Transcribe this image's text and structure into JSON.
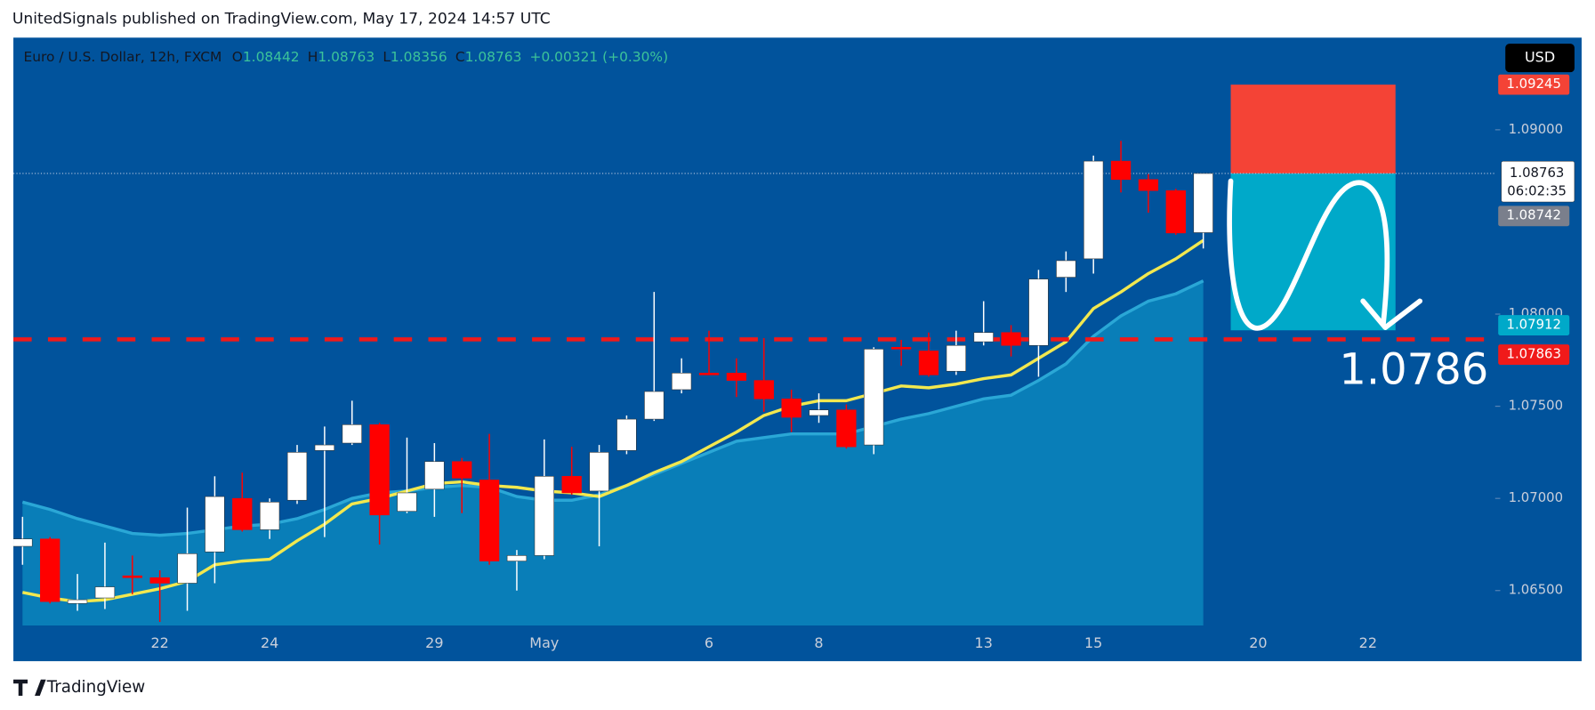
{
  "header": {
    "byline": "UnitedSignals published on TradingView.com, May 17, 2024 14:57 UTC"
  },
  "chart_data": {
    "type": "candlestick",
    "title": "Euro / U.S. Dollar, 12h, FXCM",
    "ohlc_letters": [
      "O",
      "H",
      "L",
      "C"
    ],
    "change": "+0.00321 (+0.30%)",
    "currency": "USD",
    "categories": [
      null,
      null,
      null,
      null,
      null,
      "22",
      null,
      null,
      null,
      "24",
      null,
      null,
      null,
      null,
      null,
      "29",
      null,
      null,
      null,
      "May",
      null,
      null,
      null,
      null,
      null,
      "6",
      null,
      null,
      null,
      "8",
      null,
      null,
      null,
      null,
      null,
      "13",
      null,
      null,
      null,
      "15",
      null,
      null,
      null,
      null,
      null,
      "20",
      null,
      null,
      null,
      "22"
    ],
    "open": [
      1.0674,
      1.0678,
      1.0643,
      1.0646,
      1.0658,
      1.0657,
      1.0654,
      1.0671,
      1.07,
      1.0683,
      1.0699,
      1.0726,
      1.073,
      1.074,
      1.0693,
      1.0705,
      1.072,
      1.071,
      1.0666,
      1.0669,
      1.0712,
      1.0704,
      1.0726,
      1.0743,
      1.0759,
      1.0768,
      1.0768,
      1.0764,
      1.0754,
      1.0745,
      1.0748,
      1.0729,
      1.0782,
      1.078,
      1.0769,
      1.0785,
      1.079,
      1.0783,
      1.082,
      1.083,
      1.0883,
      1.0873,
      1.0867,
      1.08442,
      null,
      null,
      null,
      null,
      null,
      null
    ],
    "high": [
      1.069,
      1.0679,
      1.0659,
      1.0676,
      1.0669,
      1.0661,
      1.0695,
      1.0712,
      1.0714,
      1.07,
      1.0729,
      1.0739,
      1.0753,
      1.0741,
      1.0733,
      1.073,
      1.0722,
      1.0735,
      1.0672,
      1.0732,
      1.0728,
      1.0729,
      1.0745,
      1.0812,
      1.0776,
      1.0791,
      1.0776,
      1.0787,
      1.0759,
      1.0757,
      1.0751,
      1.0782,
      1.0786,
      1.079,
      1.0791,
      1.0807,
      1.0794,
      1.0824,
      1.0834,
      1.0886,
      1.0894,
      1.0876,
      1.0868,
      1.08763,
      null,
      null,
      null,
      null,
      null,
      null
    ],
    "low": [
      1.0664,
      1.0643,
      1.0639,
      1.064,
      1.0648,
      1.0633,
      1.0639,
      1.0654,
      1.0682,
      1.0678,
      1.0697,
      1.0679,
      1.0729,
      1.0675,
      1.0692,
      1.069,
      1.0692,
      1.0664,
      1.065,
      1.0667,
      1.0702,
      1.0674,
      1.0724,
      1.0742,
      1.0757,
      1.0767,
      1.0755,
      1.0747,
      1.0736,
      1.0741,
      1.0727,
      1.0724,
      1.0772,
      1.0766,
      1.0767,
      1.0783,
      1.0777,
      1.0766,
      1.0812,
      1.0822,
      1.0866,
      1.0855,
      1.0843,
      1.08356,
      null,
      null,
      null,
      null,
      null,
      null
    ],
    "close": [
      1.0678,
      1.0644,
      1.0645,
      1.0652,
      1.0657,
      1.0654,
      1.067,
      1.0701,
      1.0683,
      1.0698,
      1.0725,
      1.0729,
      1.074,
      1.0691,
      1.0703,
      1.072,
      1.0711,
      1.0666,
      1.0669,
      1.0712,
      1.0703,
      1.0725,
      1.0743,
      1.0758,
      1.0768,
      1.0767,
      1.0764,
      1.0754,
      1.0744,
      1.0748,
      1.0728,
      1.0781,
      1.0781,
      1.0767,
      1.0783,
      1.079,
      1.0783,
      1.0819,
      1.0829,
      1.0883,
      1.0873,
      1.0867,
      1.0844,
      1.08763,
      null,
      null,
      null,
      null,
      null,
      null
    ],
    "up_color": "#ffffff",
    "down_color": "#ff0000",
    "overlays": [
      {
        "style": "area",
        "color": "#0a86bd",
        "values": [
          1.0698,
          1.0694,
          1.0689,
          1.0685,
          1.0681,
          1.068,
          1.0681,
          1.0683,
          1.0685,
          1.0686,
          1.0689,
          1.0694,
          1.07,
          1.0703,
          1.0704,
          1.0706,
          1.0707,
          1.0706,
          1.0701,
          1.0699,
          1.0699,
          1.0702,
          1.0707,
          1.0713,
          1.0719,
          1.0725,
          1.0731,
          1.0733,
          1.0735,
          1.0735,
          1.0735,
          1.0739,
          1.0743,
          1.0746,
          1.075,
          1.0754,
          1.0756,
          1.0764,
          1.0773,
          1.0788,
          1.0799,
          1.0807,
          1.0811,
          1.0818,
          null,
          null,
          null,
          null,
          null,
          null
        ]
      },
      {
        "style": "line",
        "color": "#f2e84f",
        "values": [
          1.0649,
          1.0646,
          1.0644,
          1.0645,
          1.0648,
          1.0651,
          1.0655,
          1.0664,
          1.0666,
          1.0667,
          1.0677,
          1.0686,
          1.0697,
          1.07,
          1.0704,
          1.0708,
          1.0709,
          1.0707,
          1.0706,
          1.0704,
          1.0703,
          1.0701,
          1.0707,
          1.0714,
          1.072,
          1.0728,
          1.0736,
          1.0745,
          1.075,
          1.0753,
          1.0753,
          1.0757,
          1.0761,
          1.076,
          1.0762,
          1.0765,
          1.0767,
          1.0776,
          1.0785,
          1.0803,
          1.0812,
          1.0822,
          1.083,
          1.084,
          null,
          null,
          null,
          null,
          null,
          null
        ]
      }
    ],
    "ylim": [
      1.0631,
      1.095
    ],
    "yticks": [
      {
        "value": 1.065,
        "label": "1.06500"
      },
      {
        "value": 1.07,
        "label": "1.07000"
      },
      {
        "value": 1.075,
        "label": "1.07500"
      },
      {
        "value": 1.08,
        "label": "1.08000"
      },
      {
        "value": 1.09,
        "label": "1.09000"
      }
    ],
    "ma_label": 1.08742,
    "countdown": "06:02:35",
    "level": 1.07863,
    "level_color": "#f01a1a",
    "position": {
      "stop": 1.09245,
      "entry": 1.08763,
      "target": 1.07912,
      "stop_color": "#f44336",
      "target_color": "#00a9c9"
    },
    "annotation": "1.0786"
  },
  "footer": {
    "brand": "TradingView"
  }
}
